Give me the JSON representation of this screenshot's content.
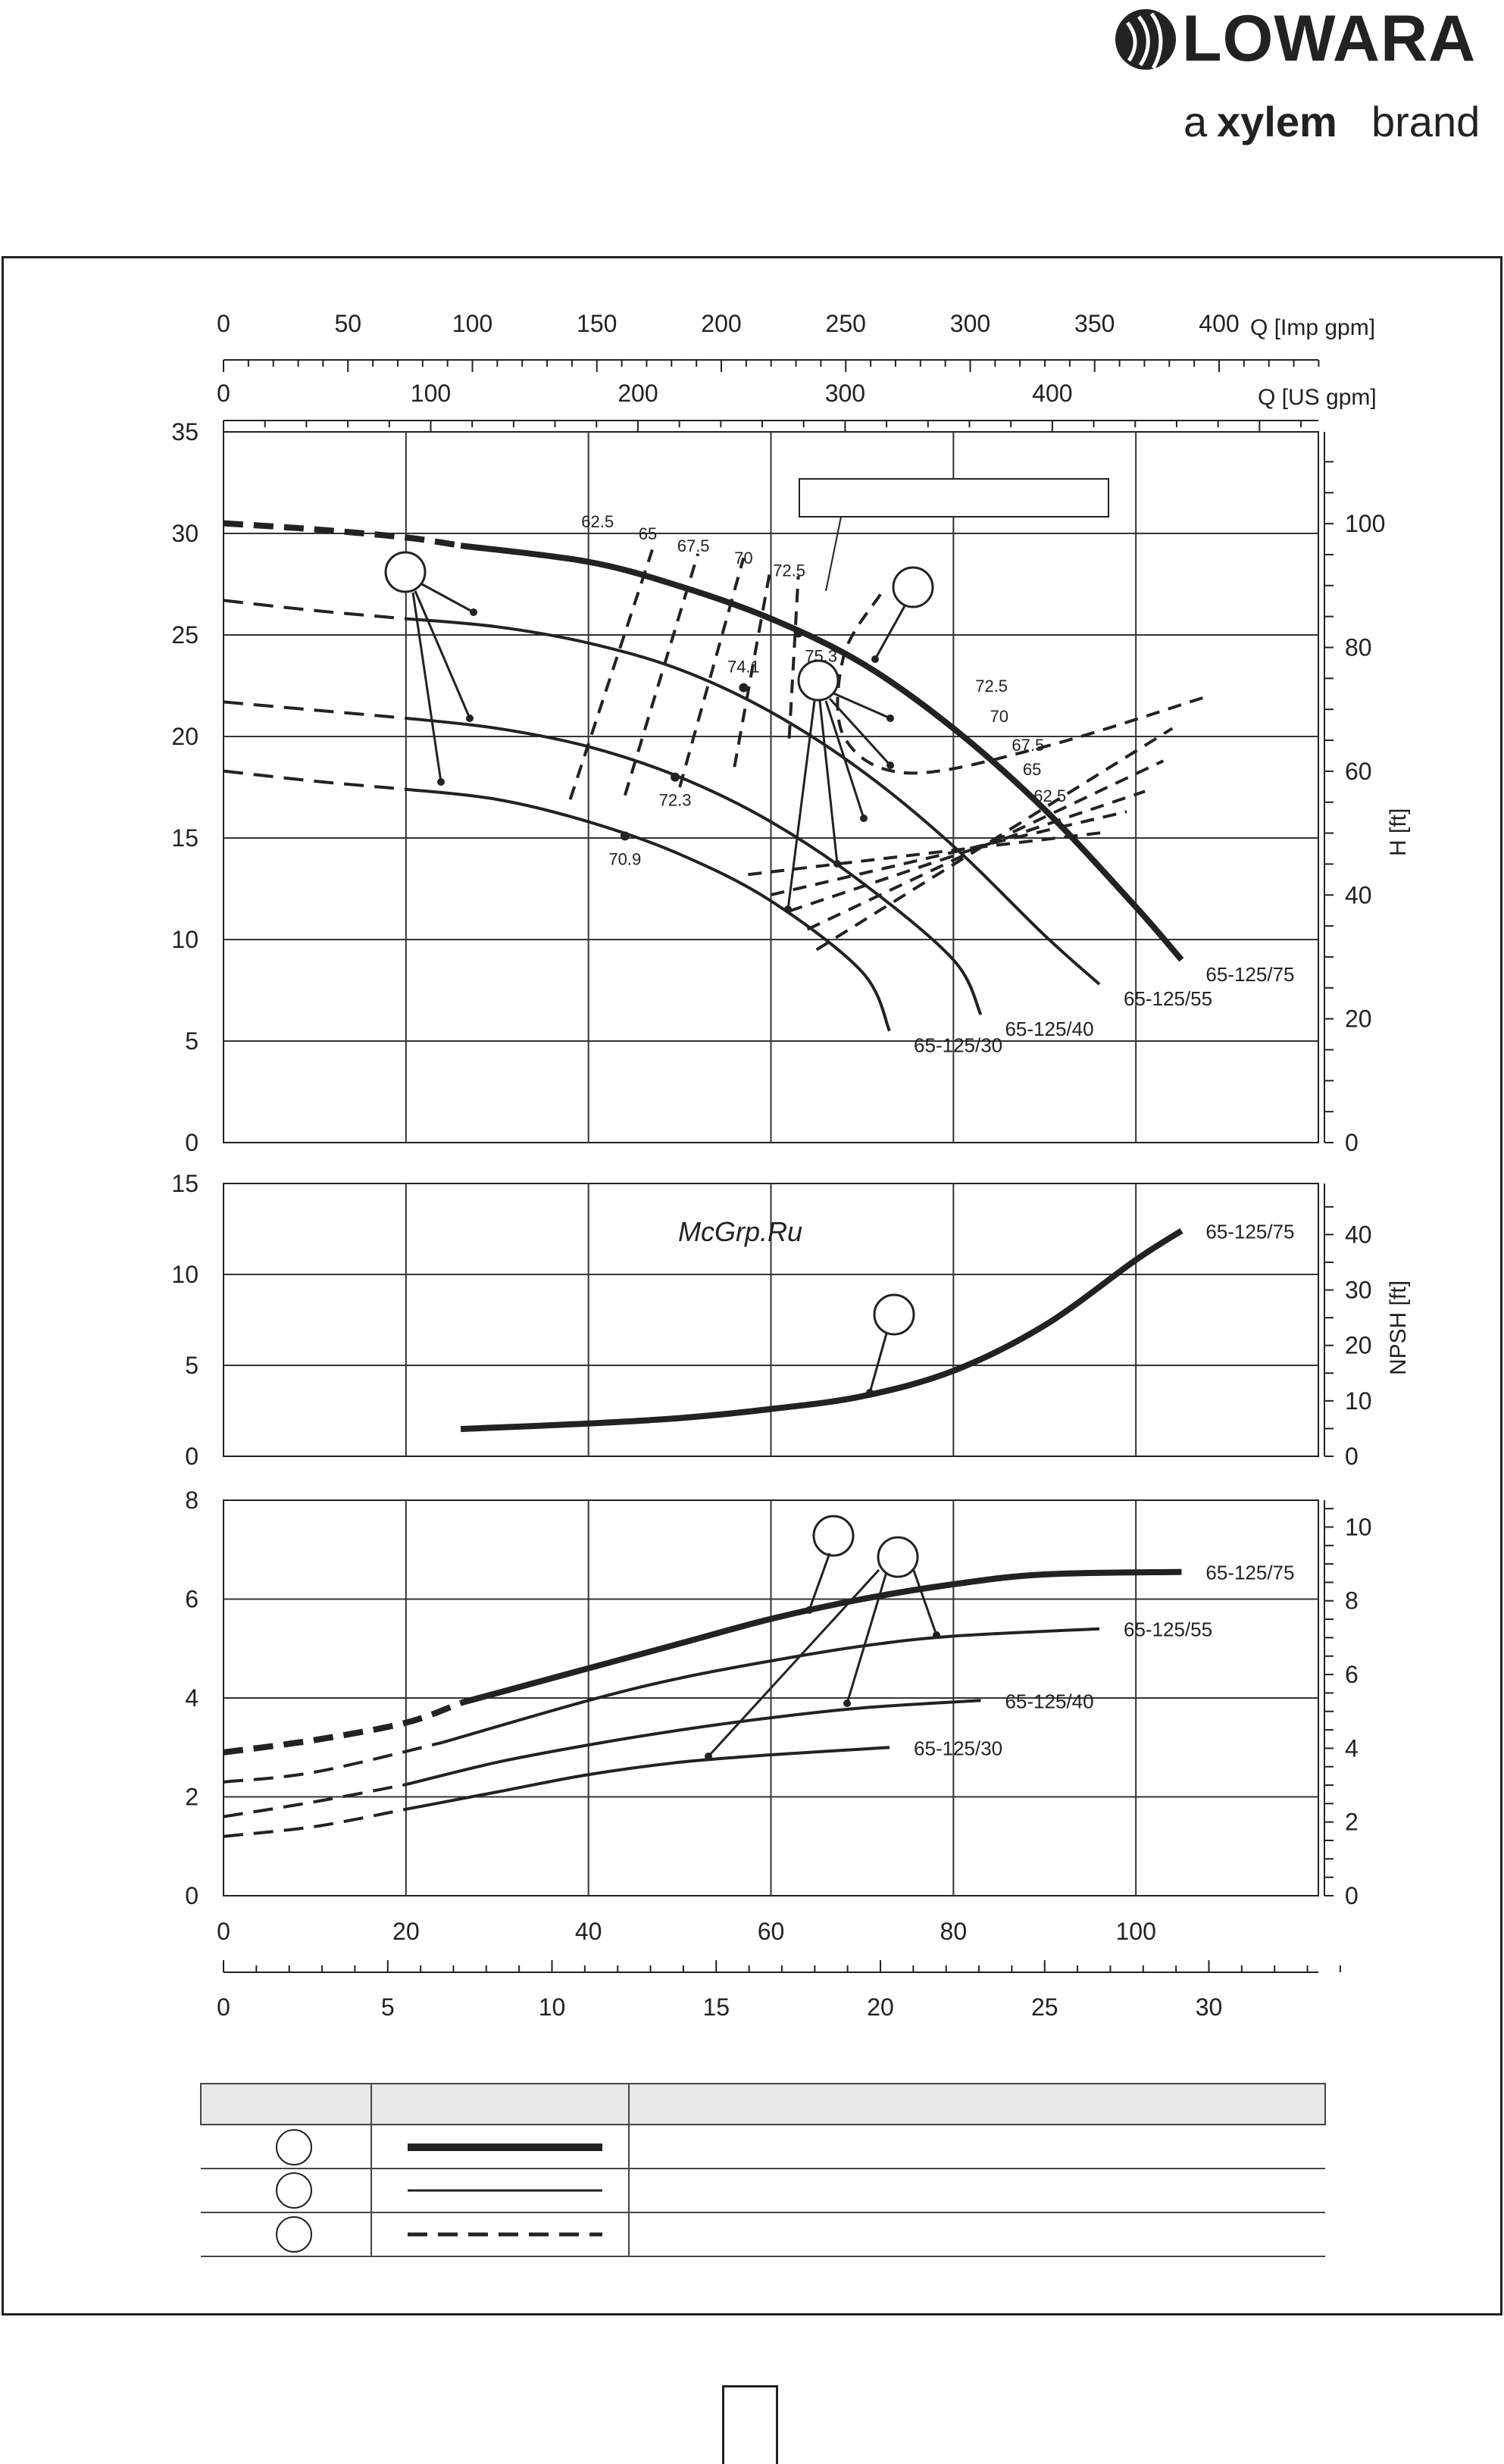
{
  "brand": {
    "name": "LOWARA",
    "tagline_prefix": "a",
    "tagline_brand": "xylem",
    "tagline_suffix": "brand"
  },
  "watermark": "McGrp.Ru",
  "colors": {
    "ink": "#222222",
    "watermark": "#cc2222"
  },
  "chart_data": {
    "type": "line",
    "x_axes": {
      "imp_gpm": {
        "label": "Q [Imp gpm]",
        "ticks": [
          0,
          50,
          100,
          150,
          200,
          250,
          300,
          350,
          400
        ]
      },
      "us_gpm": {
        "label": "Q [US gpm]",
        "ticks": [
          0,
          100,
          200,
          300,
          400
        ]
      },
      "m3h": {
        "ticks": [
          0,
          20,
          40,
          60,
          80,
          100
        ],
        "range": [
          0,
          120
        ]
      },
      "ls": {
        "ticks": [
          0,
          5,
          10,
          15,
          20,
          25,
          30
        ]
      }
    },
    "head": {
      "y_left": {
        "ticks": [
          0,
          5,
          10,
          15,
          20,
          25,
          30,
          35
        ],
        "range": [
          0,
          35
        ]
      },
      "y_right": {
        "label": "H [ft]",
        "ticks": [
          0,
          20,
          40,
          60,
          80,
          100
        ]
      },
      "series": [
        {
          "name": "65-125/75",
          "style": "thick",
          "points": [
            [
              26,
              29.4
            ],
            [
              40,
              28.6
            ],
            [
              50,
              27.4
            ],
            [
              60,
              25.8
            ],
            [
              70,
              23.6
            ],
            [
              80,
              20.4
            ],
            [
              90,
              16.4
            ],
            [
              100,
              11.6
            ],
            [
              105,
              9
            ]
          ],
          "dashed_part": [
            [
              0,
              30.5
            ],
            [
              10,
              30.2
            ],
            [
              20,
              29.8
            ],
            [
              26,
              29.4
            ]
          ]
        },
        {
          "name": "65-125/55",
          "style": "thin",
          "points": [
            [
              20,
              25.8
            ],
            [
              30,
              25.4
            ],
            [
              40,
              24.6
            ],
            [
              50,
              23.3
            ],
            [
              60,
              21.2
            ],
            [
              70,
              18.3
            ],
            [
              80,
              14.6
            ],
            [
              90,
              10.2
            ],
            [
              96,
              7.8
            ]
          ],
          "dashed_part": [
            [
              0,
              26.7
            ],
            [
              10,
              26.2
            ],
            [
              20,
              25.8
            ]
          ]
        },
        {
          "name": "65-125/40",
          "style": "thin",
          "points": [
            [
              20,
              20.9
            ],
            [
              30,
              20.4
            ],
            [
              40,
              19.5
            ],
            [
              50,
              18
            ],
            [
              60,
              15.8
            ],
            [
              70,
              12.8
            ],
            [
              80,
              9
            ],
            [
              83,
              6.3
            ]
          ],
          "dashed_part": [
            [
              0,
              21.7
            ],
            [
              10,
              21.3
            ],
            [
              20,
              20.9
            ]
          ]
        },
        {
          "name": "65-125/30",
          "style": "thin",
          "points": [
            [
              20,
              17.4
            ],
            [
              30,
              16.9
            ],
            [
              40,
              15.8
            ],
            [
              50,
              14.2
            ],
            [
              60,
              11.9
            ],
            [
              70,
              8.4
            ],
            [
              73,
              5.5
            ]
          ],
          "dashed_part": [
            [
              0,
              18.3
            ],
            [
              10,
              17.8
            ],
            [
              20,
              17.4
            ]
          ]
        }
      ],
      "efficiency_labels": [
        "62.5",
        "65",
        "67.5",
        "70",
        "72.5"
      ],
      "efficiency_labels_right": [
        "72.5",
        "70",
        "67.5",
        "65",
        "62.5"
      ],
      "bep_labels": [
        {
          "text": "75.3",
          "x": 63,
          "y": 25.1
        },
        {
          "text": "74.1",
          "x": 57,
          "y": 22.4
        },
        {
          "text": "72.3",
          "x": 49.5,
          "y": 18
        },
        {
          "text": "70.9",
          "x": 44,
          "y": 15.1
        }
      ]
    },
    "npsh": {
      "y_left": {
        "ticks": [
          0,
          5,
          10,
          15
        ],
        "range": [
          0,
          15
        ]
      },
      "y_right": {
        "label": "NPSH [ft]",
        "ticks": [
          0,
          10,
          20,
          30,
          40
        ]
      },
      "series": [
        {
          "name": "65-125/75",
          "style": "thick",
          "points": [
            [
              26,
              1.5
            ],
            [
              40,
              1.8
            ],
            [
              50,
              2.1
            ],
            [
              60,
              2.6
            ],
            [
              70,
              3.3
            ],
            [
              80,
              4.7
            ],
            [
              90,
              7.2
            ],
            [
              100,
              10.8
            ],
            [
              105,
              12.4
            ]
          ]
        }
      ]
    },
    "power": {
      "y_left": {
        "ticks": [
          0,
          2,
          4,
          6,
          8
        ],
        "range": [
          0,
          8
        ]
      },
      "y_right": {
        "ticks": [
          0,
          2,
          4,
          6,
          8,
          10
        ]
      },
      "series": [
        {
          "name": "65-125/75",
          "style": "thick",
          "points": [
            [
              26,
              3.9
            ],
            [
              40,
              4.6
            ],
            [
              50,
              5.1
            ],
            [
              60,
              5.6
            ],
            [
              70,
              6.0
            ],
            [
              80,
              6.3
            ],
            [
              90,
              6.5
            ],
            [
              105,
              6.55
            ]
          ],
          "dashed_part": [
            [
              0,
              2.9
            ],
            [
              10,
              3.15
            ],
            [
              20,
              3.5
            ],
            [
              26,
              3.9
            ]
          ]
        },
        {
          "name": "65-125/55",
          "style": "thin",
          "points": [
            [
              24,
              3.1
            ],
            [
              40,
              3.95
            ],
            [
              50,
              4.4
            ],
            [
              60,
              4.75
            ],
            [
              70,
              5.05
            ],
            [
              80,
              5.25
            ],
            [
              96,
              5.4
            ]
          ],
          "dashed_part": [
            [
              0,
              2.3
            ],
            [
              10,
              2.5
            ],
            [
              24,
              3.1
            ]
          ]
        },
        {
          "name": "65-125/40",
          "style": "thin",
          "points": [
            [
              20,
              2.25
            ],
            [
              30,
              2.7
            ],
            [
              40,
              3.05
            ],
            [
              50,
              3.35
            ],
            [
              60,
              3.6
            ],
            [
              70,
              3.8
            ],
            [
              83,
              3.95
            ]
          ],
          "dashed_part": [
            [
              0,
              1.6
            ],
            [
              10,
              1.9
            ],
            [
              20,
              2.25
            ]
          ]
        },
        {
          "name": "65-125/30",
          "style": "thin",
          "points": [
            [
              20,
              1.75
            ],
            [
              30,
              2.1
            ],
            [
              40,
              2.45
            ],
            [
              50,
              2.7
            ],
            [
              60,
              2.85
            ],
            [
              73,
              3.0
            ]
          ],
          "dashed_part": [
            [
              0,
              1.2
            ],
            [
              10,
              1.4
            ],
            [
              20,
              1.75
            ]
          ]
        }
      ]
    },
    "legend_table": {
      "header": [
        "",
        "",
        ""
      ],
      "rows": 3
    }
  }
}
